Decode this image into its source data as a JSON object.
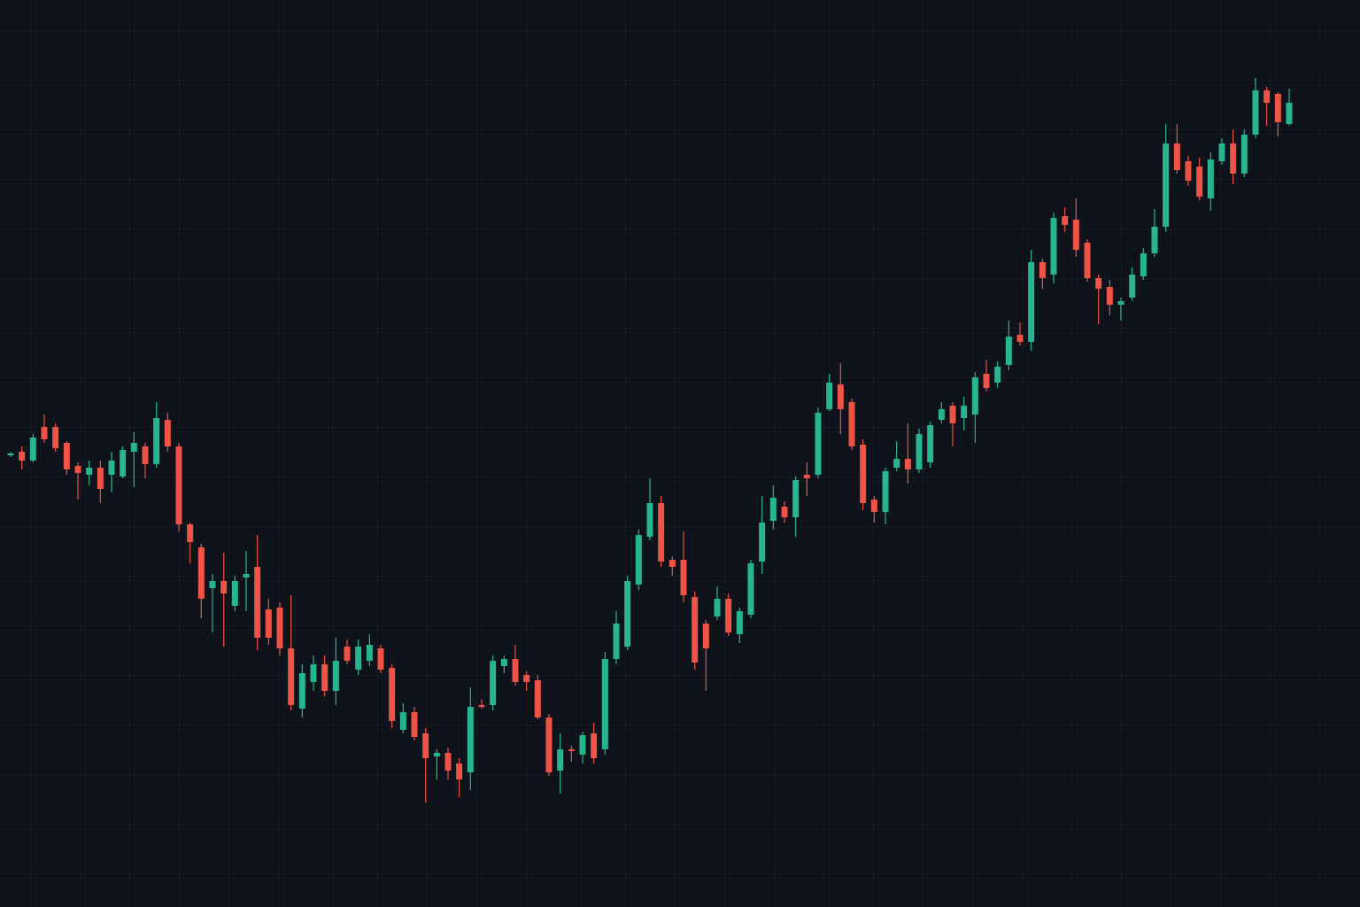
{
  "chart_data": {
    "type": "candlestick",
    "up_color": "#26b58f",
    "down_color": "#ee5346",
    "ylim": [
      0,
      1024
    ],
    "open": [
      510,
      514,
      504,
      542,
      542,
      524,
      498,
      488,
      496,
      488,
      486,
      514,
      520,
      500,
      550,
      520,
      432,
      406,
      360,
      368,
      340,
      372,
      384,
      336,
      338,
      292,
      224,
      254,
      274,
      244,
      294,
      268,
      278,
      292,
      270,
      200,
      220,
      196,
      170,
      174,
      162,
      152,
      228,
      228,
      272,
      280,
      262,
      256,
      214,
      154,
      178,
      172,
      196,
      178,
      280,
      294,
      364,
      418,
      456,
      392,
      392,
      350,
      320,
      328,
      348,
      308,
      330,
      390,
      436,
      452,
      440,
      488,
      488,
      562,
      590,
      570,
      522,
      460,
      446,
      496,
      506,
      494,
      502,
      550,
      566,
      552,
      556,
      602,
      592,
      612,
      646,
      638,
      728,
      714,
      780,
      776,
      750,
      710,
      700,
      680,
      688,
      712,
      738,
      768,
      862,
      842,
      836,
      800,
      842,
      862,
      828,
      872,
      922,
      918,
      884
    ],
    "high": [
      514,
      520,
      534,
      556,
      546,
      526,
      502,
      504,
      504,
      514,
      520,
      536,
      524,
      570,
      558,
      524,
      434,
      410,
      376,
      400,
      374,
      402,
      420,
      348,
      344,
      352,
      274,
      284,
      284,
      304,
      302,
      302,
      308,
      296,
      274,
      230,
      226,
      202,
      178,
      180,
      168,
      248,
      234,
      284,
      284,
      296,
      266,
      262,
      218,
      196,
      182,
      198,
      208,
      288,
      334,
      374,
      426,
      484,
      464,
      396,
      424,
      356,
      324,
      362,
      354,
      338,
      392,
      464,
      476,
      458,
      486,
      502,
      564,
      602,
      614,
      574,
      528,
      464,
      496,
      526,
      546,
      540,
      548,
      570,
      570,
      576,
      604,
      618,
      616,
      662,
      660,
      742,
      732,
      784,
      790,
      800,
      754,
      714,
      708,
      688,
      722,
      744,
      788,
      884,
      884,
      848,
      846,
      852,
      868,
      878,
      878,
      936,
      926,
      920,
      924
    ],
    "low": [
      508,
      494,
      502,
      524,
      514,
      488,
      460,
      476,
      456,
      468,
      484,
      474,
      484,
      496,
      514,
      424,
      388,
      326,
      310,
      294,
      334,
      334,
      290,
      296,
      284,
      222,
      214,
      244,
      238,
      228,
      274,
      262,
      272,
      264,
      202,
      196,
      188,
      118,
      144,
      144,
      124,
      132,
      224,
      222,
      264,
      250,
      244,
      212,
      148,
      128,
      164,
      162,
      162,
      172,
      274,
      290,
      358,
      414,
      384,
      374,
      344,
      268,
      244,
      324,
      306,
      298,
      326,
      376,
      426,
      434,
      418,
      464,
      484,
      560,
      534,
      516,
      448,
      434,
      432,
      492,
      478,
      490,
      496,
      546,
      520,
      538,
      524,
      582,
      586,
      606,
      634,
      628,
      698,
      704,
      762,
      734,
      706,
      658,
      668,
      662,
      684,
      708,
      734,
      762,
      828,
      814,
      798,
      786,
      838,
      816,
      824,
      868,
      882,
      870,
      882
    ],
    "close": [
      512,
      504,
      530,
      528,
      518,
      494,
      490,
      496,
      472,
      504,
      516,
      524,
      500,
      552,
      520,
      432,
      412,
      348,
      368,
      354,
      368,
      376,
      304,
      304,
      292,
      228,
      264,
      274,
      244,
      278,
      278,
      294,
      296,
      268,
      210,
      220,
      192,
      168,
      174,
      154,
      144,
      226,
      226,
      278,
      280,
      254,
      254,
      214,
      152,
      178,
      176,
      194,
      168,
      280,
      320,
      368,
      420,
      456,
      390,
      384,
      352,
      276,
      292,
      348,
      310,
      334,
      388,
      434,
      462,
      440,
      482,
      484,
      558,
      592,
      562,
      520,
      456,
      446,
      492,
      506,
      494,
      534,
      544,
      562,
      546,
      566,
      598,
      586,
      610,
      644,
      638,
      728,
      710,
      778,
      770,
      742,
      710,
      698,
      680,
      684,
      714,
      738,
      768,
      862,
      832,
      820,
      802,
      844,
      862,
      828,
      872,
      922,
      908,
      886,
      908
    ]
  }
}
